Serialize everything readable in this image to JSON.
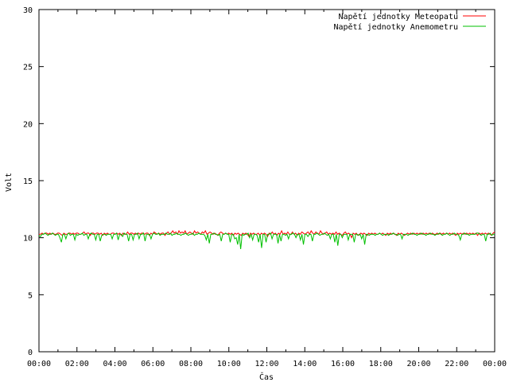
{
  "chart_data": {
    "type": "line",
    "title": "",
    "xlabel": "Čas",
    "ylabel": "Volt",
    "xlim": [
      "00:00",
      "24:00"
    ],
    "ylim": [
      0,
      30
    ],
    "yticks": [
      0,
      5,
      10,
      15,
      20,
      25,
      30
    ],
    "xtick_labels": [
      "00:00",
      "02:00",
      "04:00",
      "06:00",
      "08:00",
      "10:00",
      "12:00",
      "14:00",
      "16:00",
      "18:00",
      "20:00",
      "22:00",
      "00:00"
    ],
    "grid": false,
    "legend_position": "top-right",
    "x_step_minutes": 5,
    "series": [
      {
        "name": "Napětí jednotky Meteopatu",
        "color": "#ff0000",
        "values": [
          10.3,
          10.3,
          10.4,
          10.3,
          10.4,
          10.4,
          10.3,
          10.4,
          10.3,
          10.4,
          10.3,
          10.3,
          10.4,
          10.4,
          10.3,
          10.2,
          10.4,
          10.3,
          10.3,
          10.4,
          10.4,
          10.3,
          10.4,
          10.3,
          10.4,
          10.4,
          10.3,
          10.3,
          10.4,
          10.5,
          10.3,
          10.4,
          10.4,
          10.2,
          10.4,
          10.4,
          10.3,
          10.4,
          10.4,
          10.3,
          10.4,
          10.2,
          10.4,
          10.3,
          10.4,
          10.3,
          10.3,
          10.4,
          10.4,
          10.3,
          10.4,
          10.3,
          10.4,
          10.2,
          10.4,
          10.3,
          10.3,
          10.5,
          10.3,
          10.4,
          10.4,
          10.3,
          10.4,
          10.3,
          10.4,
          10.3,
          10.4,
          10.4,
          10.3,
          10.4,
          10.4,
          10.2,
          10.4,
          10.3,
          10.5,
          10.4,
          10.3,
          10.4,
          10.3,
          10.4,
          10.4,
          10.2,
          10.4,
          10.5,
          10.3,
          10.4,
          10.6,
          10.4,
          10.5,
          10.3,
          10.6,
          10.4,
          10.5,
          10.4,
          10.6,
          10.3,
          10.4,
          10.5,
          10.4,
          10.3,
          10.6,
          10.4,
          10.5,
          10.4,
          10.3,
          10.5,
          10.4,
          10.6,
          10.3,
          10.4,
          10.5,
          10.4,
          10.3,
          10.4,
          10.3,
          10.2,
          10.4,
          10.5,
          10.4,
          10.3,
          10.4,
          10.3,
          10.4,
          10.3,
          10.4,
          10.2,
          10.4,
          10.3,
          10.4,
          10.3,
          10.2,
          10.4,
          10.3,
          10.4,
          10.3,
          10.1,
          10.4,
          10.3,
          10.4,
          10.3,
          10.3,
          10.4,
          10.2,
          10.4,
          10.3,
          10.4,
          10.3,
          10.1,
          10.4,
          10.3,
          10.5,
          10.3,
          10.4,
          10.2,
          10.4,
          10.3,
          10.6,
          10.3,
          10.4,
          10.3,
          10.5,
          10.3,
          10.3,
          10.5,
          10.3,
          10.4,
          10.2,
          10.4,
          10.3,
          10.5,
          10.4,
          10.3,
          10.4,
          10.5,
          10.3,
          10.6,
          10.4,
          10.3,
          10.5,
          10.4,
          10.3,
          10.6,
          10.4,
          10.3,
          10.4,
          10.5,
          10.3,
          10.4,
          10.3,
          10.4,
          10.3,
          10.5,
          10.3,
          10.4,
          10.3,
          10.2,
          10.4,
          10.5,
          10.3,
          10.4,
          10.3,
          10.0,
          10.4,
          10.3,
          10.4,
          10.2,
          10.3,
          10.4,
          10.3,
          10.4,
          10.3,
          10.2,
          10.4,
          10.3,
          10.4,
          10.3,
          10.4,
          10.3,
          10.3,
          10.4,
          10.3,
          10.4,
          10.3,
          10.2,
          10.4,
          10.3,
          10.4,
          10.3,
          10.4,
          10.3,
          10.2,
          10.4,
          10.3,
          10.4,
          10.3,
          10.2,
          10.3,
          10.4,
          10.3,
          10.4,
          10.3,
          10.4,
          10.3,
          10.4,
          10.3,
          10.4,
          10.3,
          10.4,
          10.3,
          10.4,
          10.3,
          10.4,
          10.3,
          10.4,
          10.3,
          10.3,
          10.4,
          10.3,
          10.4,
          10.3,
          10.4,
          10.3,
          10.4,
          10.3,
          10.4,
          10.3,
          10.4,
          10.3,
          10.2,
          10.4,
          10.3,
          10.4,
          10.3,
          10.4,
          10.3,
          10.4,
          10.3,
          10.4,
          10.3,
          10.4,
          10.3,
          10.4,
          10.2,
          10.4,
          10.3,
          10.4,
          10.3,
          10.4,
          10.3,
          10.4,
          10.3,
          10.2,
          10.4,
          10.5
        ]
      },
      {
        "name": "Napětí jednotky Anemometru",
        "color": "#00c000",
        "values": [
          10.2,
          10.1,
          10.3,
          10.3,
          10.4,
          10.3,
          10.2,
          10.3,
          10.3,
          10.4,
          10.3,
          10.2,
          10.3,
          10.3,
          10.0,
          9.6,
          10.3,
          10.3,
          9.9,
          10.3,
          10.4,
          10.2,
          10.3,
          10.3,
          9.8,
          10.3,
          10.2,
          10.3,
          10.3,
          10.4,
          10.2,
          10.3,
          10.3,
          9.9,
          10.3,
          10.4,
          10.3,
          10.3,
          9.8,
          10.3,
          10.3,
          9.7,
          10.2,
          10.3,
          10.3,
          10.2,
          10.3,
          10.3,
          10.3,
          9.9,
          10.3,
          10.3,
          10.4,
          9.8,
          10.3,
          10.3,
          10.1,
          10.4,
          10.3,
          10.3,
          9.7,
          10.3,
          10.3,
          9.8,
          10.3,
          10.3,
          10.4,
          9.9,
          10.3,
          10.3,
          10.4,
          9.7,
          10.3,
          10.3,
          10.3,
          9.9,
          10.3,
          10.4,
          10.3,
          10.3,
          10.4,
          10.2,
          10.3,
          10.3,
          10.3,
          10.4,
          10.3,
          10.3,
          10.4,
          10.2,
          10.3,
          10.3,
          10.4,
          10.3,
          10.3,
          10.2,
          10.3,
          10.3,
          10.4,
          10.3,
          10.2,
          10.3,
          10.3,
          10.4,
          10.2,
          10.3,
          10.3,
          10.4,
          10.3,
          10.3,
          10.3,
          10.2,
          9.8,
          10.3,
          9.5,
          10.3,
          10.3,
          10.4,
          10.3,
          10.3,
          10.2,
          10.3,
          9.7,
          10.3,
          10.3,
          10.4,
          10.3,
          10.3,
          9.6,
          10.3,
          10.3,
          9.9,
          10.0,
          9.4,
          10.3,
          9.0,
          10.3,
          10.2,
          10.3,
          10.3,
          10.4,
          10.0,
          10.3,
          9.8,
          10.3,
          10.3,
          10.2,
          9.6,
          10.3,
          9.1,
          10.3,
          10.3,
          9.6,
          10.3,
          10.3,
          10.4,
          9.9,
          10.3,
          10.3,
          10.3,
          9.5,
          10.3,
          9.7,
          10.3,
          10.3,
          10.2,
          10.3,
          9.9,
          10.3,
          10.3,
          10.4,
          10.3,
          10.0,
          10.3,
          10.3,
          9.8,
          10.3,
          9.4,
          10.3,
          10.3,
          10.1,
          10.3,
          10.3,
          9.7,
          10.3,
          10.3,
          10.4,
          10.3,
          10.2,
          10.3,
          10.3,
          10.4,
          10.3,
          10.2,
          10.3,
          9.9,
          10.3,
          10.3,
          9.6,
          10.3,
          9.3,
          10.3,
          10.3,
          10.0,
          10.3,
          10.3,
          10.3,
          9.8,
          10.3,
          10.3,
          10.3,
          9.6,
          10.3,
          10.3,
          10.2,
          10.3,
          9.9,
          10.3,
          9.4,
          10.3,
          10.3,
          10.2,
          10.3,
          10.3,
          10.3,
          10.2,
          10.3,
          10.3,
          10.4,
          10.3,
          10.2,
          10.3,
          10.3,
          10.3,
          10.2,
          10.3,
          10.3,
          10.4,
          10.3,
          10.3,
          10.2,
          10.3,
          10.3,
          9.9,
          10.3,
          10.3,
          10.3,
          10.2,
          10.3,
          10.3,
          10.4,
          10.3,
          10.3,
          10.2,
          10.3,
          10.3,
          10.4,
          10.3,
          10.3,
          10.2,
          10.3,
          10.3,
          10.4,
          10.3,
          10.3,
          10.2,
          10.3,
          10.3,
          10.4,
          10.3,
          10.2,
          10.3,
          10.3,
          10.4,
          10.3,
          10.2,
          10.3,
          10.3,
          10.4,
          10.3,
          10.3,
          10.2,
          9.8,
          10.3,
          10.3,
          10.4,
          10.3,
          10.3,
          10.2,
          10.3,
          10.3,
          10.3,
          10.3,
          10.4,
          10.4,
          10.3,
          10.2,
          10.3,
          10.3,
          9.7,
          10.3,
          10.3,
          10.4,
          10.2,
          10.3,
          10.3
        ]
      }
    ]
  }
}
